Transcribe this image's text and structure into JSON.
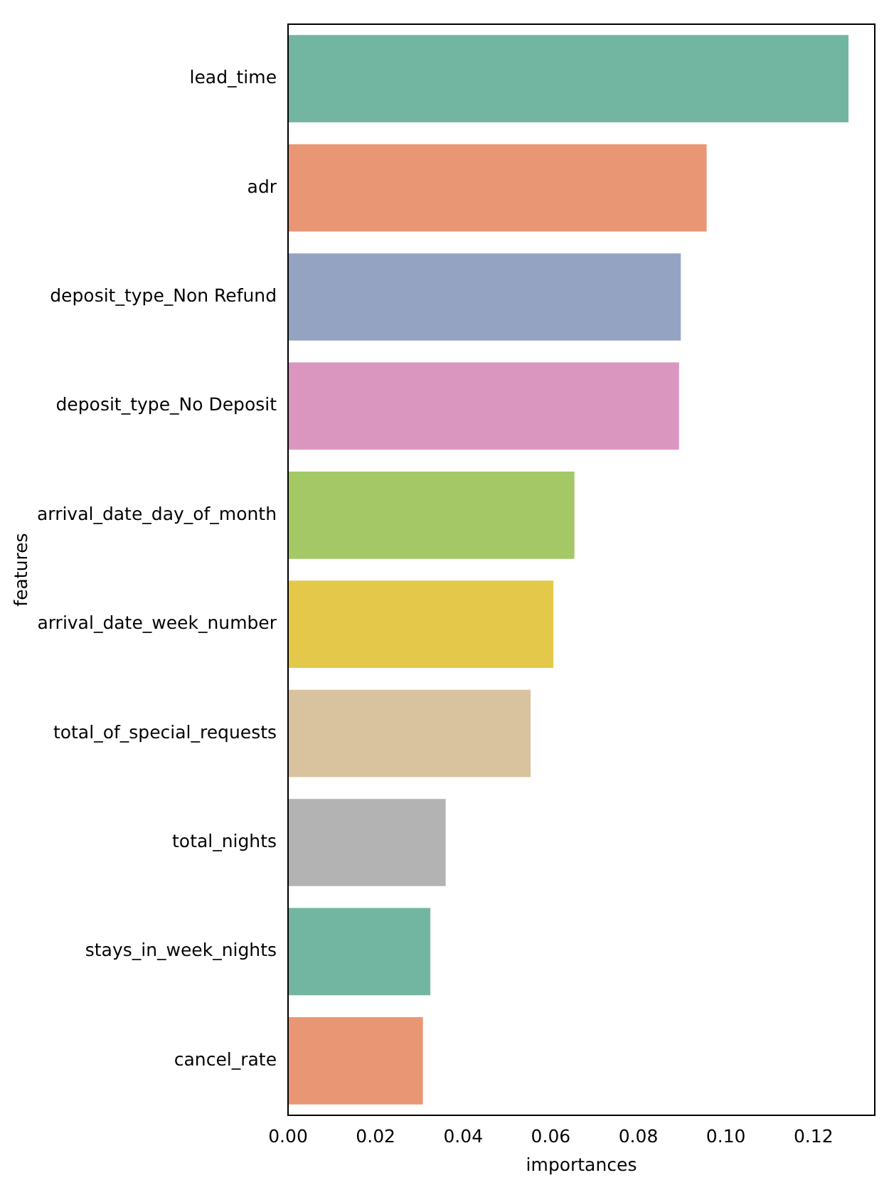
{
  "chart_data": {
    "type": "bar",
    "orientation": "horizontal",
    "xlabel": "importances",
    "ylabel": "features",
    "categories": [
      "lead_time",
      "adr",
      "deposit_type_Non Refund",
      "deposit_type_No Deposit",
      "arrival_date_day_of_month",
      "arrival_date_week_number",
      "total_of_special_requests",
      "total_nights",
      "stays_in_week_nights",
      "cancel_rate"
    ],
    "values": [
      0.128,
      0.0956,
      0.0897,
      0.0893,
      0.0654,
      0.0606,
      0.0554,
      0.036,
      0.0325,
      0.0308
    ],
    "colors": [
      "#72b6a1",
      "#e99675",
      "#95a3c3",
      "#db96c0",
      "#a4c866",
      "#e3c84a",
      "#d9c29e",
      "#b3b3b3",
      "#72b6a1",
      "#e99675"
    ],
    "xlim": [
      0,
      0.134
    ],
    "xticks": [
      {
        "value": 0,
        "label": "0.00"
      },
      0.02,
      0.04,
      0.06,
      0.08,
      {
        "value": 0.1,
        "label": "0.10"
      },
      0.12
    ],
    "grid": false,
    "legend": false
  }
}
